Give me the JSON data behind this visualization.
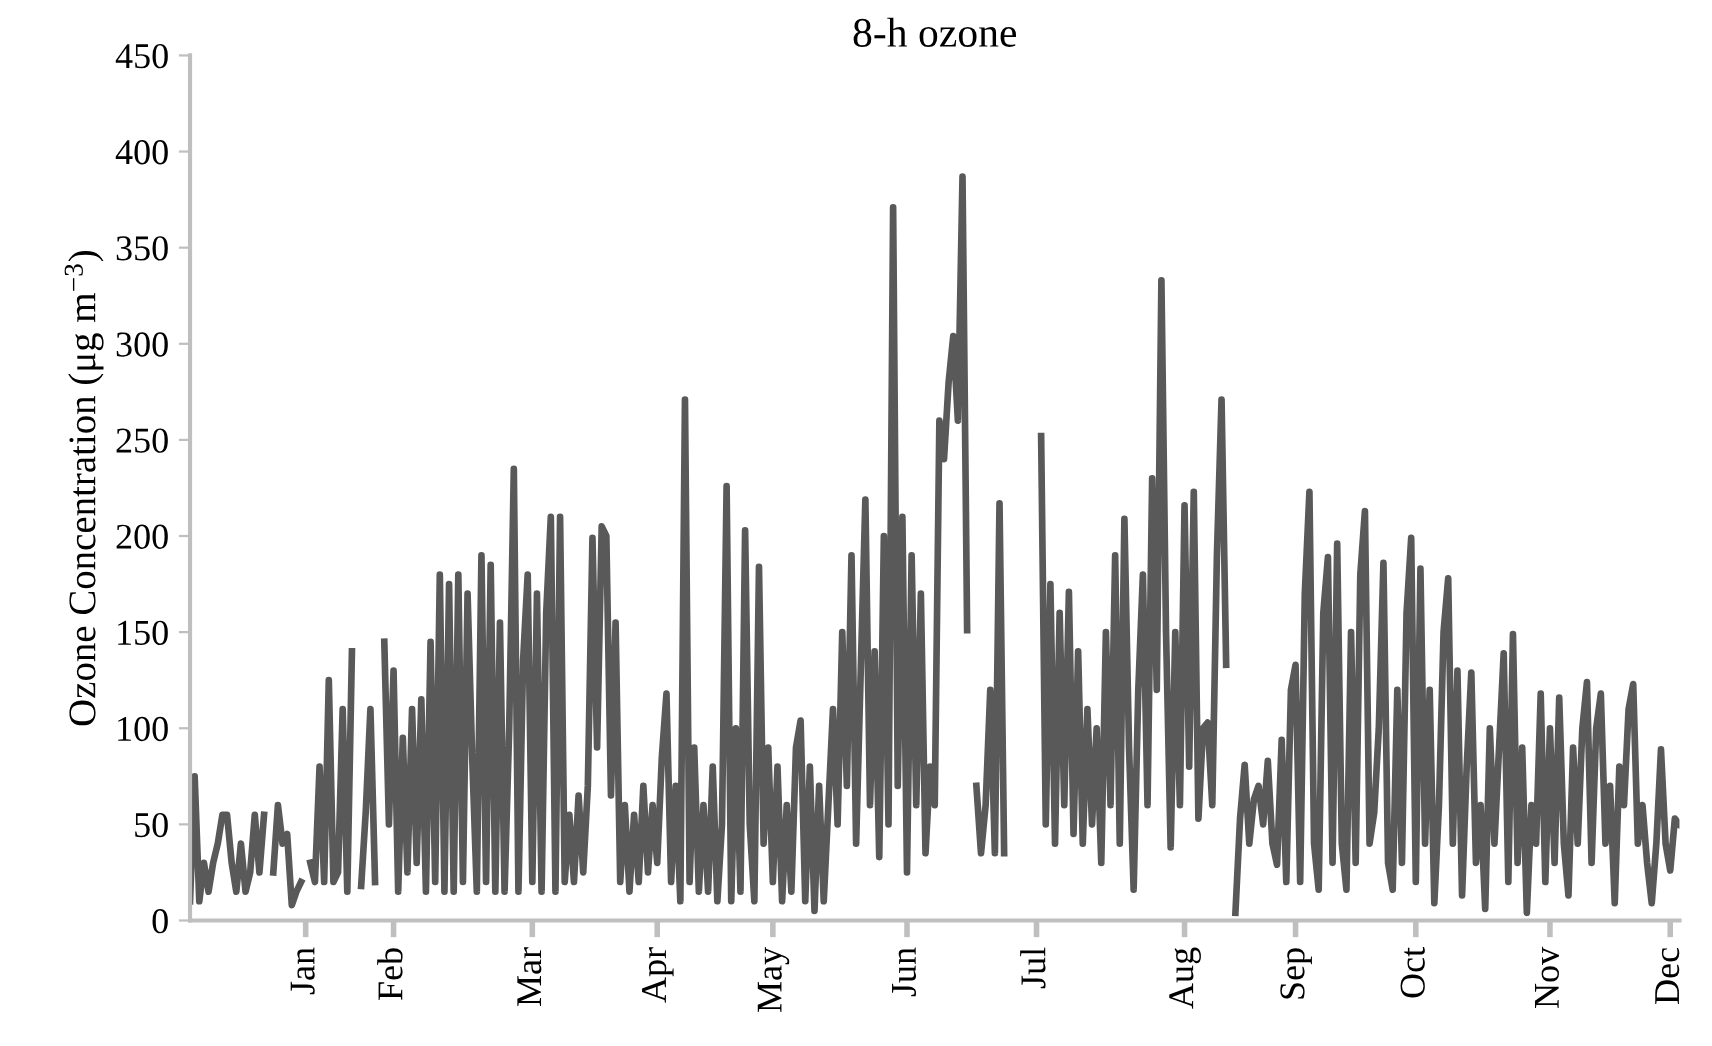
{
  "chart_data": {
    "type": "line",
    "title": "8-h ozone",
    "ylabel": "Ozone Concentration (μg m$^{−3}$)",
    "ylim": [
      0,
      450
    ],
    "yticks": [
      0,
      50,
      100,
      150,
      200,
      250,
      300,
      350,
      400,
      450
    ],
    "categories": [
      null,
      null,
      null,
      null,
      null,
      null,
      null,
      null,
      null,
      null,
      null,
      null,
      null,
      null,
      null,
      null,
      null,
      null,
      null,
      null,
      null,
      null,
      null,
      null,
      null,
      "Jan",
      null,
      null,
      null,
      null,
      null,
      null,
      null,
      null,
      null,
      null,
      null,
      null,
      null,
      null,
      null,
      null,
      null,
      null,
      "Feb",
      null,
      null,
      null,
      null,
      null,
      null,
      null,
      null,
      null,
      null,
      null,
      null,
      null,
      null,
      null,
      null,
      null,
      null,
      null,
      null,
      null,
      null,
      null,
      null,
      null,
      null,
      null,
      null,
      null,
      "Mar",
      null,
      null,
      null,
      null,
      null,
      null,
      null,
      null,
      null,
      null,
      null,
      null,
      null,
      null,
      null,
      null,
      null,
      null,
      null,
      null,
      null,
      null,
      null,
      null,
      null,
      null,
      "Apr",
      null,
      null,
      null,
      null,
      null,
      null,
      null,
      null,
      null,
      null,
      null,
      null,
      null,
      null,
      null,
      null,
      null,
      null,
      null,
      null,
      null,
      null,
      null,
      null,
      "May",
      null,
      null,
      null,
      null,
      null,
      null,
      null,
      null,
      null,
      null,
      null,
      null,
      null,
      null,
      null,
      null,
      null,
      null,
      null,
      null,
      null,
      null,
      null,
      null,
      null,
      null,
      null,
      null,
      "Jun",
      null,
      null,
      null,
      null,
      null,
      null,
      null,
      null,
      null,
      null,
      null,
      null,
      null,
      null,
      null,
      null,
      null,
      null,
      null,
      null,
      null,
      null,
      null,
      null,
      null,
      null,
      null,
      "Jul",
      null,
      null,
      null,
      null,
      null,
      null,
      null,
      null,
      null,
      null,
      null,
      null,
      null,
      null,
      null,
      null,
      null,
      null,
      null,
      null,
      null,
      null,
      null,
      null,
      null,
      null,
      null,
      null,
      null,
      null,
      null,
      "Aug",
      null,
      null,
      null,
      null,
      null,
      null,
      null,
      null,
      null,
      null,
      null,
      null,
      null,
      null,
      null,
      null,
      null,
      null,
      null,
      null,
      null,
      null,
      null,
      "Sep",
      null,
      null,
      null,
      null,
      null,
      null,
      null,
      null,
      null,
      null,
      null,
      null,
      null,
      null,
      null,
      null,
      null,
      null,
      null,
      null,
      null,
      null,
      null,
      null,
      null,
      "Oct",
      null,
      null,
      null,
      null,
      null,
      null,
      null,
      null,
      null,
      null,
      null,
      null,
      null,
      null,
      null,
      null,
      null,
      null,
      null,
      null,
      null,
      null,
      null,
      null,
      null,
      null,
      null,
      null,
      "Nov",
      null,
      null,
      null,
      null,
      null,
      null,
      null,
      null,
      null,
      null,
      null,
      null,
      null,
      null,
      null,
      null,
      null,
      null,
      null,
      null,
      null,
      null,
      null,
      null,
      null,
      "Dec",
      null,
      null
    ],
    "grid": false,
    "marker": "none",
    "line_style": "solid",
    "series": [
      {
        "color": "#595959",
        "values": [
          10,
          75,
          10,
          30,
          15,
          30,
          40,
          55,
          55,
          30,
          15,
          40,
          15,
          25,
          55,
          25,
          55,
          null,
          25,
          60,
          40,
          45,
          8,
          15,
          20,
          null,
          30,
          20,
          80,
          20,
          125,
          20,
          25,
          110,
          15,
          140,
          null,
          18,
          57,
          110,
          20,
          null,
          145,
          50,
          130,
          15,
          95,
          25,
          110,
          30,
          115,
          15,
          145,
          20,
          180,
          15,
          175,
          15,
          180,
          20,
          170,
          85,
          15,
          190,
          20,
          185,
          15,
          155,
          15,
          100,
          235,
          15,
          135,
          180,
          20,
          170,
          15,
          160,
          210,
          15,
          210,
          20,
          55,
          20,
          65,
          25,
          70,
          199,
          90,
          205,
          200,
          65,
          155,
          20,
          60,
          15,
          55,
          20,
          70,
          25,
          60,
          30,
          85,
          118,
          20,
          70,
          10,
          271,
          20,
          90,
          15,
          60,
          15,
          80,
          10,
          50,
          226,
          10,
          100,
          15,
          203,
          50,
          10,
          184,
          40,
          90,
          20,
          80,
          10,
          60,
          15,
          90,
          104,
          10,
          80,
          5,
          70,
          10,
          60,
          110,
          50,
          150,
          70,
          190,
          40,
          130,
          219,
          60,
          140,
          33,
          200,
          50,
          371,
          70,
          210,
          25,
          190,
          60,
          170,
          35,
          80,
          60,
          260,
          240,
          280,
          304,
          260,
          387,
          151,
          null,
          70,
          35,
          60,
          120,
          35,
          217,
          35,
          null,
          null,
          null,
          null,
          null,
          null,
          null,
          252,
          50,
          175,
          40,
          160,
          60,
          171,
          45,
          140,
          40,
          110,
          50,
          100,
          30,
          150,
          60,
          190,
          40,
          209,
          90,
          16,
          120,
          180,
          60,
          230,
          120,
          333,
          150,
          38,
          150,
          60,
          216,
          80,
          223,
          53,
          100,
          103,
          60,
          190,
          271,
          133,
          null,
          4,
          53,
          81,
          40,
          63,
          70,
          50,
          83,
          40,
          29,
          94,
          20,
          120,
          133,
          20,
          170,
          223,
          40,
          16,
          160,
          189,
          30,
          196,
          40,
          16,
          150,
          30,
          180,
          213,
          40,
          56,
          100,
          186,
          30,
          16,
          120,
          30,
          160,
          199,
          20,
          183,
          40,
          120,
          9,
          60,
          150,
          178,
          40,
          130,
          13,
          80,
          129,
          30,
          60,
          6,
          100,
          40,
          90,
          139,
          20,
          149,
          30,
          90,
          4,
          60,
          40,
          118,
          20,
          100,
          30,
          116,
          40,
          13,
          90,
          40,
          100,
          124,
          30,
          100,
          118,
          40,
          70,
          9,
          80,
          60,
          110,
          123,
          40,
          60,
          30,
          9,
          40,
          89,
          40,
          26,
          53,
          50
        ]
      }
    ]
  }
}
